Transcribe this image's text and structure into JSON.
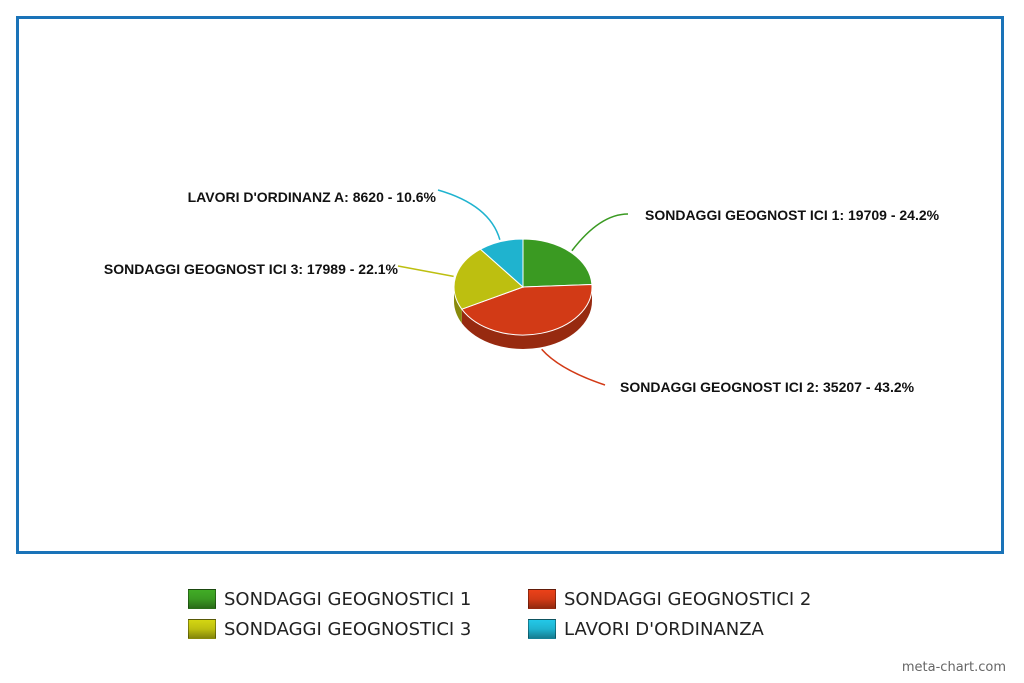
{
  "chart_data": {
    "type": "pie",
    "style": "3d",
    "slices": [
      {
        "name": "SONDAGGI GEOGNOSTICI 1",
        "value": 19709,
        "percent": 24.2,
        "color": "#3a9a22",
        "label": "SONDAGGI GEOGNOST ICI 1: 19709 - 24.2%"
      },
      {
        "name": "SONDAGGI GEOGNOSTICI 2",
        "value": 35207,
        "percent": 43.2,
        "color": "#d23a16",
        "label": "SONDAGGI GEOGNOST ICI 2: 35207 - 43.2%"
      },
      {
        "name": "SONDAGGI GEOGNOSTICI 3",
        "value": 17989,
        "percent": 22.1,
        "color": "#bdbf10",
        "label": "SONDAGGI GEOGNOST ICI 3: 17989 - 22.1%"
      },
      {
        "name": "LAVORI D'ORDINANZA",
        "value": 8620,
        "percent": 10.6,
        "color": "#1fb3cf",
        "label": "LAVORI D'ORDINANZ A: 8620 - 10.6%"
      }
    ],
    "legend_position": "bottom"
  },
  "colors": {
    "frame_border": "#1a73b8"
  },
  "credit": "meta-chart.com"
}
